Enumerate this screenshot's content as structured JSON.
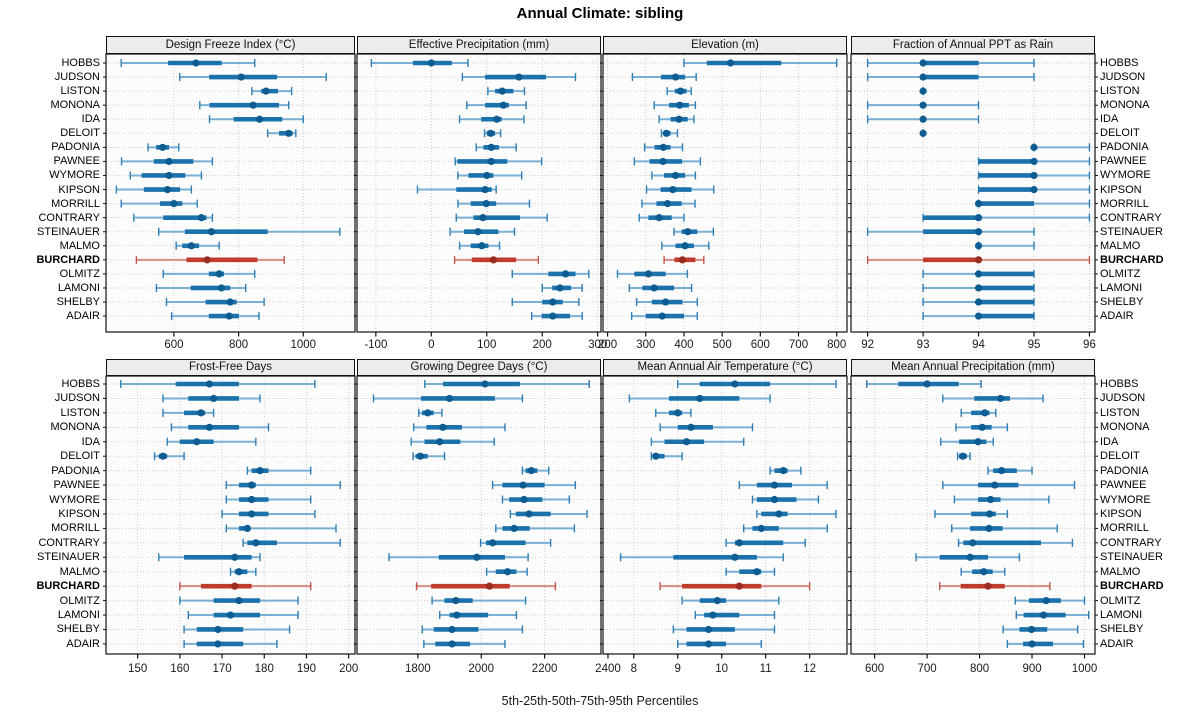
{
  "chart_data": {
    "type": "dotplot-trellis",
    "title": "Annual Climate: sibling",
    "caption": "5th-25th-50th-75th-95th Percentiles",
    "percentiles": [
      5,
      25,
      50,
      75,
      95
    ],
    "legend_position": "none",
    "grid": "dotted",
    "stations": [
      "HOBBS",
      "JUDSON",
      "LISTON",
      "MONONA",
      "IDA",
      "DELOIT",
      "PADONIA",
      "PAWNEE",
      "WYMORE",
      "KIPSON",
      "MORRILL",
      "CONTRARY",
      "STEINAUER",
      "MALMO",
      "BURCHARD",
      "OLMITZ",
      "LAMONI",
      "SHELBY",
      "ADAIR"
    ],
    "highlight_station": "BURCHARD",
    "colors": {
      "blue_range": "#7aafd4",
      "blue_cap": "#2e7eb3",
      "blue_bar": "#1c72ab",
      "blue_dot": "#0d5c92",
      "red_range": "#d98b82",
      "red_cap": "#c0544a",
      "red_bar": "#bf3b2c",
      "red_dot": "#9a2d20",
      "strip_bg": "#ececec",
      "panel_bg": "#fcfcfc",
      "grid_line": "#cdcdcd",
      "border": "#111111"
    },
    "panels": [
      {
        "title": "Design Freeze Index (°C)",
        "row": 0,
        "col": 0,
        "xlim": [
          390,
          1160
        ],
        "xticks": [
          600,
          800,
          1000
        ],
        "values": [
          [
            437,
            582,
            668,
            748,
            850
          ],
          [
            618,
            709,
            808,
            919,
            1071
          ],
          [
            841,
            870,
            885,
            922,
            964
          ],
          [
            680,
            710,
            845,
            925,
            955
          ],
          [
            710,
            785,
            865,
            935,
            1000
          ],
          [
            890,
            925,
            955,
            967,
            977
          ],
          [
            520,
            545,
            565,
            585,
            615
          ],
          [
            438,
            538,
            585,
            660,
            719
          ],
          [
            465,
            500,
            585,
            635,
            685
          ],
          [
            422,
            507,
            580,
            619,
            654
          ],
          [
            437,
            557,
            600,
            626,
            672
          ],
          [
            476,
            567,
            685,
            701,
            719
          ],
          [
            553,
            634,
            716,
            890,
            1113
          ],
          [
            607,
            626,
            654,
            678,
            740
          ],
          [
            484,
            639,
            703,
            858,
            941
          ],
          [
            567,
            708,
            740,
            755,
            850
          ],
          [
            546,
            652,
            747,
            774,
            822
          ],
          [
            577,
            698,
            774,
            794,
            879
          ],
          [
            593,
            708,
            771,
            801,
            863
          ]
        ]
      },
      {
        "title": "Effective Precipitation (mm)",
        "row": 0,
        "col": 1,
        "xlim": [
          -134,
          306
        ],
        "xticks": [
          -100,
          0,
          100,
          200,
          300
        ],
        "values": [
          [
            -108,
            -33,
            0,
            37,
            66
          ],
          [
            56,
            97,
            158,
            207,
            260
          ],
          [
            102,
            115,
            128,
            148,
            168
          ],
          [
            64,
            97,
            130,
            140,
            171
          ],
          [
            51,
            90,
            118,
            127,
            167
          ],
          [
            96,
            100,
            107,
            115,
            125
          ],
          [
            81,
            94,
            108,
            122,
            153
          ],
          [
            43,
            47,
            108,
            137,
            199
          ],
          [
            48,
            67,
            100,
            112,
            163
          ],
          [
            -25,
            45,
            97,
            109,
            117
          ],
          [
            48,
            71,
            99,
            117,
            177
          ],
          [
            45,
            76,
            93,
            160,
            209
          ],
          [
            34,
            59,
            84,
            121,
            150
          ],
          [
            51,
            71,
            91,
            103,
            123
          ],
          [
            42,
            73,
            112,
            153,
            193
          ],
          [
            146,
            211,
            242,
            260,
            284
          ],
          [
            200,
            218,
            232,
            252,
            272
          ],
          [
            146,
            200,
            219,
            237,
            266
          ],
          [
            181,
            199,
            219,
            250,
            272
          ]
        ]
      },
      {
        "title": "Elevation (m)",
        "row": 0,
        "col": 2,
        "xlim": [
          188,
          827
        ],
        "xticks": [
          200,
          300,
          400,
          500,
          600,
          700,
          800
        ],
        "values": [
          [
            400,
            460,
            522,
            655,
            800
          ],
          [
            265,
            340,
            378,
            403,
            432
          ],
          [
            356,
            376,
            391,
            407,
            419
          ],
          [
            322,
            361,
            389,
            413,
            430
          ],
          [
            335,
            365,
            387,
            410,
            426
          ],
          [
            341,
            346,
            354,
            365,
            383
          ],
          [
            297,
            323,
            346,
            365,
            396
          ],
          [
            270,
            310,
            345,
            395,
            443
          ],
          [
            316,
            348,
            378,
            403,
            430
          ],
          [
            302,
            339,
            371,
            420,
            478
          ],
          [
            290,
            328,
            357,
            394,
            429
          ],
          [
            283,
            307,
            335,
            368,
            400
          ],
          [
            374,
            394,
            410,
            435,
            477
          ],
          [
            342,
            378,
            403,
            426,
            465
          ],
          [
            348,
            375,
            396,
            430,
            452
          ],
          [
            226,
            270,
            307,
            352,
            409
          ],
          [
            257,
            291,
            322,
            374,
            420
          ],
          [
            276,
            316,
            352,
            396,
            435
          ],
          [
            263,
            300,
            343,
            400,
            435
          ]
        ]
      },
      {
        "title": "Fraction of Annual PPT as Rain",
        "row": 0,
        "col": 3,
        "xlim": [
          91.7,
          96.1
        ],
        "xticks": [
          92,
          93,
          94,
          95,
          96
        ],
        "values": [
          [
            92,
            93,
            93,
            94,
            95
          ],
          [
            92,
            93,
            93,
            94,
            95
          ],
          [
            93,
            93,
            93,
            93,
            93
          ],
          [
            92,
            93,
            93,
            93,
            94
          ],
          [
            92,
            93,
            93,
            93,
            94
          ],
          [
            93,
            93,
            93,
            93,
            93
          ],
          [
            95,
            95,
            95,
            95,
            96
          ],
          [
            94,
            94,
            95,
            95,
            96
          ],
          [
            94,
            94,
            95,
            95,
            96
          ],
          [
            94,
            94,
            95,
            95,
            96
          ],
          [
            94,
            94,
            94,
            95,
            96
          ],
          [
            93,
            93,
            94,
            94,
            96
          ],
          [
            92,
            93,
            94,
            94,
            95
          ],
          [
            94,
            94,
            94,
            94,
            95
          ],
          [
            92,
            93,
            94,
            94,
            96
          ],
          [
            93,
            94,
            94,
            95,
            95
          ],
          [
            93,
            94,
            94,
            95,
            95
          ],
          [
            93,
            94,
            94,
            95,
            95
          ],
          [
            93,
            94,
            94,
            95,
            95
          ]
        ]
      },
      {
        "title": "Frost-Free Days",
        "row": 1,
        "col": 0,
        "xlim": [
          142.5,
          201.5
        ],
        "xticks": [
          150,
          160,
          170,
          180,
          190,
          200
        ],
        "values": [
          [
            146,
            159,
            167,
            174,
            192
          ],
          [
            156,
            162,
            168,
            174,
            179
          ],
          [
            156,
            161,
            165,
            166,
            168
          ],
          [
            158,
            162,
            167,
            174,
            181
          ],
          [
            157,
            160,
            164,
            168,
            178
          ],
          [
            154,
            155,
            156,
            157,
            161
          ],
          [
            176,
            177,
            179,
            181,
            191
          ],
          [
            171,
            174,
            177,
            178,
            198
          ],
          [
            171,
            174,
            177,
            181,
            191
          ],
          [
            170,
            174,
            177,
            181,
            192
          ],
          [
            171,
            174,
            176,
            176,
            197
          ],
          [
            175,
            176,
            178,
            183,
            198
          ],
          [
            155,
            161,
            173,
            177,
            179
          ],
          [
            172,
            173,
            174,
            176,
            178
          ],
          [
            160,
            165,
            173,
            177,
            191
          ],
          [
            160,
            168,
            174,
            179,
            188
          ],
          [
            162,
            168,
            172,
            179,
            188
          ],
          [
            161,
            164,
            169,
            175,
            186
          ],
          [
            161,
            164,
            169,
            175,
            183
          ]
        ]
      },
      {
        "title": "Growing Degree Days (°C)",
        "row": 1,
        "col": 1,
        "xlim": [
          1608,
          2378
        ],
        "xticks": [
          1800,
          2000,
          2200,
          2400
        ],
        "values": [
          [
            1822,
            1879,
            2012,
            2122,
            2341
          ],
          [
            1660,
            1810,
            1900,
            2043,
            2130
          ],
          [
            1803,
            1813,
            1831,
            1850,
            1876
          ],
          [
            1787,
            1827,
            1879,
            1939,
            2075
          ],
          [
            1779,
            1821,
            1869,
            1934,
            2041
          ],
          [
            1785,
            1793,
            1808,
            1831,
            1884
          ],
          [
            2130,
            2140,
            2158,
            2177,
            2213
          ],
          [
            2036,
            2067,
            2132,
            2200,
            2297
          ],
          [
            2067,
            2088,
            2135,
            2193,
            2278
          ],
          [
            2092,
            2109,
            2151,
            2219,
            2334
          ],
          [
            2046,
            2067,
            2104,
            2153,
            2294
          ],
          [
            1998,
            2015,
            2036,
            2140,
            2219
          ],
          [
            1709,
            1866,
            1986,
            2075,
            2148
          ],
          [
            2017,
            2046,
            2083,
            2111,
            2145
          ],
          [
            1796,
            1842,
            2026,
            2090,
            2234
          ],
          [
            1845,
            1884,
            1920,
            1973,
            2140
          ],
          [
            1869,
            1900,
            1923,
            2022,
            2111
          ],
          [
            1814,
            1850,
            1908,
            1991,
            2130
          ],
          [
            1819,
            1855,
            1908,
            1965,
            2075
          ]
        ]
      },
      {
        "title": "Mean Annual Air Temperature (°C)",
        "row": 1,
        "col": 2,
        "xlim": [
          7.3,
          12.85
        ],
        "xticks": [
          8,
          9,
          10,
          11,
          12
        ],
        "values": [
          [
            9.0,
            9.5,
            10.3,
            11.1,
            12.6
          ],
          [
            7.9,
            8.8,
            9.5,
            10.4,
            11.1
          ],
          [
            8.5,
            8.8,
            9.0,
            9.1,
            9.3
          ],
          [
            8.6,
            9.0,
            9.3,
            9.8,
            10.7
          ],
          [
            8.4,
            8.7,
            9.2,
            9.6,
            10.5
          ],
          [
            8.4,
            8.5,
            8.5,
            8.7,
            9.1
          ],
          [
            11.1,
            11.2,
            11.4,
            11.5,
            11.8
          ],
          [
            10.4,
            10.8,
            11.2,
            11.6,
            12.4
          ],
          [
            10.7,
            10.8,
            11.2,
            11.7,
            12.2
          ],
          [
            10.8,
            10.9,
            11.3,
            11.5,
            12.6
          ],
          [
            10.5,
            10.7,
            10.9,
            11.3,
            12.4
          ],
          [
            10.1,
            10.3,
            10.4,
            11.4,
            11.9
          ],
          [
            7.7,
            8.9,
            10.3,
            10.8,
            11.4
          ],
          [
            10.1,
            10.4,
            10.8,
            10.9,
            11.2
          ],
          [
            8.6,
            9.1,
            10.4,
            10.9,
            12.0
          ],
          [
            9.1,
            9.5,
            9.9,
            10.1,
            11.3
          ],
          [
            9.4,
            9.6,
            9.8,
            10.4,
            11.2
          ],
          [
            8.9,
            9.2,
            9.7,
            10.3,
            11.2
          ],
          [
            9.0,
            9.2,
            9.7,
            10.1,
            10.9
          ]
        ]
      },
      {
        "title": "Mean Annual Precipitation (mm)",
        "row": 1,
        "col": 3,
        "xlim": [
          555,
          1020
        ],
        "xticks": [
          600,
          700,
          800,
          900,
          1000
        ],
        "values": [
          [
            585,
            645,
            700,
            760,
            803
          ],
          [
            730,
            790,
            840,
            858,
            921
          ],
          [
            765,
            784,
            810,
            819,
            831
          ],
          [
            755,
            784,
            805,
            823,
            853
          ],
          [
            726,
            761,
            797,
            813,
            826
          ],
          [
            758,
            761,
            768,
            776,
            782
          ],
          [
            816,
            826,
            842,
            871,
            900
          ],
          [
            730,
            797,
            829,
            874,
            981
          ],
          [
            752,
            797,
            821,
            840,
            932
          ],
          [
            715,
            784,
            819,
            831,
            853
          ],
          [
            747,
            782,
            818,
            844,
            948
          ],
          [
            760,
            769,
            787,
            917,
            977
          ],
          [
            679,
            724,
            782,
            816,
            876
          ],
          [
            765,
            786,
            808,
            825,
            848
          ],
          [
            724,
            764,
            816,
            848,
            934
          ],
          [
            868,
            894,
            927,
            955,
            1000
          ],
          [
            870,
            884,
            922,
            964,
            1008
          ],
          [
            845,
            876,
            899,
            929,
            987
          ],
          [
            853,
            883,
            900,
            940,
            998
          ]
        ]
      }
    ]
  }
}
